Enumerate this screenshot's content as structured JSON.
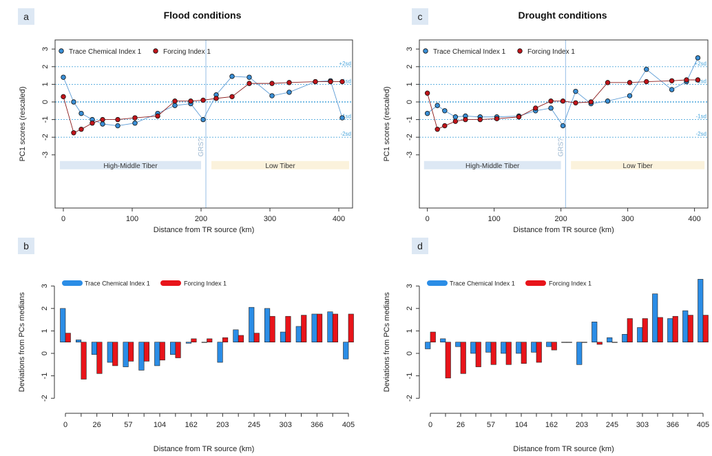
{
  "axis_labels": {
    "line_x": "Distance from TR source (km)",
    "line_y": "PC1 scores (rescaled)",
    "bar_x": "Distance from TR source (km)",
    "bar_y": "Deviations from PCs medians"
  },
  "legend": {
    "trace": "Trace Chemical Index 1",
    "forcing": "Forcing Index 1"
  },
  "sd_labels": [
    "+2sd",
    "+1sd",
    "-1sd",
    "-2sd"
  ],
  "zones": {
    "high_middle": "High-Middle Tiber",
    "low": "Low Tiber",
    "divider_label": "GRS?"
  },
  "colors": {
    "trace_fill": "#3a8fd6",
    "forcing_fill": "#c0141a",
    "trace_line": "#5b9bd5",
    "forcing_line": "#8b1a1a",
    "trace_bar": "#2b8de6",
    "forcing_bar": "#e8141a",
    "sd_lines": "#4aa6dc",
    "panel_tag_bg": "#dde8f4",
    "high_middle_band": "#dde8f4",
    "low_band": "#fbf2dc",
    "divider": "#a7c9ea"
  },
  "chart_data": [
    {
      "panel": "a",
      "type": "line",
      "title": "Flood conditions",
      "xlim": [
        0,
        410
      ],
      "ylim": [
        -3,
        3
      ],
      "xticks": [
        0,
        100,
        200,
        300,
        400
      ],
      "yticks": [
        -3,
        -2,
        -1,
        0,
        1,
        2,
        3
      ],
      "sd_lines": [
        2,
        1,
        0,
        -1,
        -2
      ],
      "divider_x": 207,
      "series": [
        {
          "name": "Trace Chemical Index 1",
          "x": [
            0,
            15,
            26,
            42,
            57,
            79,
            104,
            137,
            162,
            185,
            203,
            222,
            245,
            270,
            303,
            328,
            366,
            388,
            405
          ],
          "values": [
            1.4,
            0.0,
            -0.65,
            -1.0,
            -1.25,
            -1.35,
            -1.2,
            -0.65,
            -0.2,
            -0.1,
            -1.0,
            0.4,
            1.45,
            1.4,
            0.35,
            0.55,
            1.15,
            1.2,
            -0.9
          ]
        },
        {
          "name": "Forcing Index 1",
          "x": [
            0,
            15,
            26,
            42,
            57,
            79,
            104,
            137,
            162,
            185,
            203,
            222,
            245,
            270,
            303,
            328,
            366,
            388,
            405
          ],
          "values": [
            0.3,
            -1.75,
            -1.55,
            -1.2,
            -1.0,
            -1.0,
            -0.9,
            -0.8,
            0.05,
            0.05,
            0.1,
            0.2,
            0.3,
            1.05,
            1.05,
            1.1,
            1.15,
            1.15,
            1.15
          ]
        }
      ]
    },
    {
      "panel": "c",
      "type": "line",
      "title": "Drought conditions",
      "xlim": [
        0,
        410
      ],
      "ylim": [
        -3,
        3
      ],
      "xticks": [
        0,
        100,
        200,
        300,
        400
      ],
      "yticks": [
        -3,
        -2,
        -1,
        0,
        1,
        2,
        3
      ],
      "sd_lines": [
        2,
        1,
        0,
        -1,
        -2
      ],
      "divider_x": 207,
      "series": [
        {
          "name": "Trace Chemical Index 1",
          "x": [
            0,
            15,
            26,
            42,
            57,
            79,
            104,
            137,
            162,
            185,
            203,
            222,
            245,
            270,
            303,
            328,
            366,
            388,
            405
          ],
          "values": [
            -0.65,
            -0.2,
            -0.5,
            -0.85,
            -0.8,
            -0.85,
            -0.85,
            -0.8,
            -0.5,
            -0.35,
            -1.35,
            0.6,
            -0.1,
            0.05,
            0.35,
            1.85,
            0.7,
            1.15,
            2.5
          ]
        },
        {
          "name": "Forcing Index 1",
          "x": [
            0,
            15,
            26,
            42,
            57,
            79,
            104,
            137,
            162,
            185,
            203,
            222,
            245,
            270,
            303,
            328,
            366,
            388,
            405
          ],
          "values": [
            0.5,
            -1.55,
            -1.35,
            -1.1,
            -1.0,
            -1.0,
            -0.95,
            -0.85,
            -0.35,
            0.05,
            0.05,
            -0.05,
            0.0,
            1.1,
            1.1,
            1.15,
            1.2,
            1.25,
            1.25
          ]
        }
      ]
    },
    {
      "panel": "b",
      "type": "bar",
      "title": "",
      "ylim": [
        -2,
        3
      ],
      "yticks": [
        -2,
        -1,
        0,
        1,
        2,
        3
      ],
      "baseline": 0.5,
      "categories": [
        "0",
        "15",
        "26",
        "42",
        "57",
        "79",
        "104",
        "137",
        "162",
        "185",
        "203",
        "222",
        "245",
        "270",
        "303",
        "328",
        "366",
        "388",
        "405"
      ],
      "tick_labels": [
        "0",
        "",
        "26",
        "",
        "57",
        "",
        "104",
        "",
        "162",
        "",
        "203",
        "",
        "245",
        "",
        "303",
        "",
        "366",
        "",
        "405"
      ],
      "series": [
        {
          "name": "Trace Chemical Index 1",
          "values": [
            2.0,
            0.6,
            -0.05,
            -0.4,
            -0.6,
            -0.75,
            -0.55,
            -0.05,
            0.45,
            0.5,
            -0.4,
            1.05,
            2.05,
            2.0,
            0.95,
            1.2,
            1.75,
            1.85,
            -0.25
          ]
        },
        {
          "name": "Forcing Index 1",
          "values": [
            0.9,
            -1.15,
            -0.9,
            -0.55,
            -0.35,
            -0.35,
            -0.3,
            -0.2,
            0.65,
            0.65,
            0.7,
            0.8,
            0.9,
            1.65,
            1.65,
            1.7,
            1.75,
            1.75,
            1.75
          ]
        }
      ]
    },
    {
      "panel": "d",
      "type": "bar",
      "title": "",
      "ylim": [
        -2,
        3
      ],
      "yticks": [
        -2,
        -1,
        0,
        1,
        2,
        3
      ],
      "baseline": 0.5,
      "categories": [
        "0",
        "15",
        "26",
        "42",
        "57",
        "79",
        "104",
        "137",
        "162",
        "185",
        "203",
        "222",
        "245",
        "270",
        "303",
        "328",
        "366",
        "388",
        "405"
      ],
      "tick_labels": [
        "0",
        "",
        "26",
        "",
        "57",
        "",
        "104",
        "",
        "162",
        "",
        "203",
        "",
        "245",
        "",
        "303",
        "",
        "366",
        "",
        "405"
      ],
      "series": [
        {
          "name": "Trace Chemical Index 1",
          "values": [
            0.2,
            0.65,
            0.3,
            0.0,
            0.05,
            0.0,
            0.0,
            0.05,
            0.3,
            0.5,
            -0.5,
            1.4,
            0.7,
            0.85,
            1.15,
            2.65,
            1.55,
            1.9,
            3.3
          ]
        },
        {
          "name": "Forcing Index 1",
          "values": [
            0.95,
            -1.1,
            -0.9,
            -0.6,
            -0.5,
            -0.5,
            -0.45,
            -0.4,
            0.15,
            0.5,
            0.5,
            0.4,
            0.5,
            1.55,
            1.55,
            1.6,
            1.65,
            1.7,
            1.7
          ]
        }
      ]
    }
  ]
}
